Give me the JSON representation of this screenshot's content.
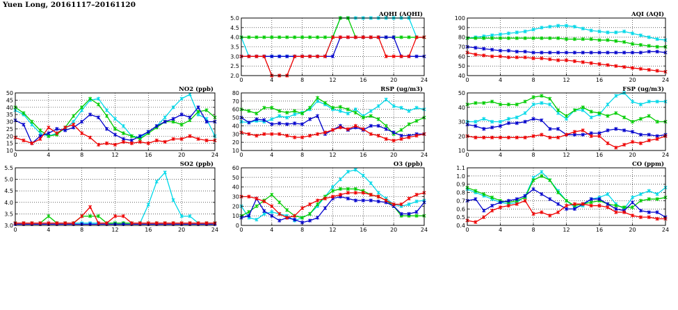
{
  "title": "Yuen Long, 20161117–20161120",
  "colors": {
    "day1": "#00d8e8",
    "day2": "#00cc00",
    "day3": "#0000cc",
    "day4": "#ee0000"
  },
  "chart_data": [
    {
      "id": "aqhi",
      "type": "line",
      "title": "AQHI (AQHI)",
      "xlim": [
        0,
        24
      ],
      "ylim": [
        2.0,
        5.0
      ],
      "xticks": [
        "0",
        "4",
        "8",
        "12",
        "16",
        "20",
        "24"
      ],
      "yticks": [
        "2.0",
        "2.5",
        "3.0",
        "3.5",
        "4.0",
        "4.5",
        "5.0"
      ],
      "grid": true,
      "series": [
        {
          "color": "cyan",
          "values": [
            4,
            3,
            3,
            3,
            3,
            3,
            3,
            3,
            3,
            3,
            3,
            3,
            4,
            5,
            5,
            5,
            5,
            5,
            5,
            5,
            5,
            5,
            5,
            4,
            4
          ]
        },
        {
          "color": "green",
          "values": [
            4,
            4,
            4,
            4,
            4,
            4,
            4,
            4,
            4,
            4,
            4,
            4,
            4,
            5,
            5,
            4,
            4,
            4,
            4,
            4,
            4,
            4,
            4,
            4,
            4
          ]
        },
        {
          "color": "blue",
          "values": [
            3,
            3,
            3,
            3,
            3,
            3,
            3,
            3,
            3,
            3,
            3,
            3,
            3,
            4,
            4,
            4,
            4,
            4,
            4,
            4,
            4,
            3,
            3,
            3,
            3
          ]
        },
        {
          "color": "red",
          "values": [
            3,
            3,
            3,
            3,
            2,
            2,
            2,
            3,
            3,
            3,
            3,
            3,
            4,
            4,
            4,
            4,
            4,
            4,
            4,
            3,
            3,
            3,
            3,
            4,
            4
          ]
        }
      ]
    },
    {
      "id": "aqi",
      "type": "line",
      "title": "AQI (AQI)",
      "xlim": [
        0,
        24
      ],
      "ylim": [
        40,
        100
      ],
      "xticks": [
        "0",
        "4",
        "8",
        "12",
        "16",
        "20",
        "24"
      ],
      "yticks": [
        "40",
        "50",
        "60",
        "70",
        "80",
        "90",
        "100"
      ],
      "grid": true,
      "series": [
        {
          "color": "cyan",
          "values": [
            79,
            80,
            81,
            82,
            83,
            84,
            85,
            86,
            88,
            90,
            91,
            92,
            92,
            91,
            89,
            87,
            86,
            85,
            85,
            86,
            84,
            82,
            80,
            78,
            77
          ]
        },
        {
          "color": "green",
          "values": [
            79,
            79,
            79,
            79,
            79,
            79,
            79,
            79,
            79,
            79,
            79,
            79,
            78,
            78,
            78,
            78,
            77,
            77,
            76,
            75,
            73,
            72,
            71,
            70,
            70
          ]
        },
        {
          "color": "blue",
          "values": [
            70,
            69,
            68,
            67,
            66,
            66,
            65,
            65,
            64,
            64,
            64,
            64,
            64,
            64,
            64,
            64,
            64,
            64,
            64,
            64,
            64,
            64,
            65,
            65,
            64
          ]
        },
        {
          "color": "red",
          "values": [
            64,
            62,
            61,
            60,
            60,
            59,
            59,
            59,
            58,
            58,
            57,
            56,
            56,
            55,
            54,
            53,
            52,
            51,
            50,
            49,
            48,
            47,
            46,
            45,
            44
          ]
        }
      ]
    },
    {
      "id": "no2",
      "type": "line",
      "title": "NO2 (ppb)",
      "xlim": [
        0,
        24
      ],
      "ylim": [
        10,
        50
      ],
      "xticks": [
        "0",
        "4",
        "8",
        "12",
        "16",
        "20",
        "24"
      ],
      "yticks": [
        "10",
        "15",
        "20",
        "25",
        "30",
        "35",
        "40",
        "45",
        "50"
      ],
      "grid": true,
      "series": [
        {
          "color": "cyan",
          "values": [
            38,
            35,
            28,
            22,
            20,
            22,
            25,
            30,
            38,
            45,
            46,
            38,
            32,
            27,
            20,
            19,
            23,
            27,
            33,
            40,
            46,
            49,
            35,
            32,
            20
          ]
        },
        {
          "color": "green",
          "values": [
            40,
            36,
            30,
            24,
            20,
            21,
            26,
            34,
            40,
            46,
            42,
            34,
            25,
            22,
            20,
            18,
            22,
            26,
            30,
            30,
            28,
            31,
            37,
            38,
            33
          ]
        },
        {
          "color": "blue",
          "values": [
            31,
            28,
            15,
            20,
            22,
            25,
            24,
            26,
            30,
            35,
            33,
            25,
            21,
            18,
            17,
            20,
            23,
            27,
            30,
            32,
            35,
            33,
            40,
            30,
            30
          ]
        },
        {
          "color": "red",
          "values": [
            19,
            17,
            15,
            18,
            26,
            22,
            26,
            28,
            22,
            19,
            14,
            15,
            14,
            16,
            15,
            16,
            15,
            17,
            16,
            18,
            18,
            20,
            18,
            17,
            17
          ]
        }
      ]
    },
    {
      "id": "rsp",
      "type": "line",
      "title": "RSP (ug/m3)",
      "xlim": [
        0,
        24
      ],
      "ylim": [
        10,
        80
      ],
      "xticks": [
        "0",
        "4",
        "8",
        "12",
        "16",
        "20",
        "24"
      ],
      "yticks": [
        "10",
        "20",
        "30",
        "40",
        "50",
        "60",
        "70",
        "80"
      ],
      "grid": true,
      "series": [
        {
          "color": "cyan",
          "values": [
            45,
            44,
            46,
            45,
            48,
            52,
            50,
            54,
            56,
            60,
            70,
            66,
            60,
            58,
            55,
            60,
            52,
            58,
            64,
            72,
            64,
            62,
            58,
            62,
            60
          ]
        },
        {
          "color": "green",
          "values": [
            60,
            58,
            55,
            62,
            62,
            58,
            56,
            58,
            55,
            62,
            74,
            68,
            62,
            63,
            60,
            56,
            50,
            52,
            48,
            40,
            30,
            35,
            42,
            46,
            50
          ]
        },
        {
          "color": "blue",
          "values": [
            50,
            44,
            48,
            47,
            42,
            43,
            42,
            43,
            42,
            48,
            52,
            30,
            35,
            40,
            35,
            38,
            35,
            40,
            40,
            36,
            32,
            28,
            28,
            30,
            30
          ]
        },
        {
          "color": "red",
          "values": [
            32,
            30,
            28,
            30,
            30,
            30,
            28,
            26,
            26,
            28,
            30,
            32,
            35,
            38,
            36,
            40,
            36,
            30,
            28,
            24,
            22,
            24,
            26,
            28,
            30
          ]
        }
      ]
    },
    {
      "id": "fsp",
      "type": "line",
      "title": "FSP (ug/m3)",
      "xlim": [
        0,
        24
      ],
      "ylim": [
        10,
        50
      ],
      "xticks": [
        "0",
        "4",
        "8",
        "12",
        "16",
        "20",
        "24"
      ],
      "yticks": [
        "10",
        "20",
        "30",
        "40",
        "50"
      ],
      "grid": true,
      "series": [
        {
          "color": "cyan",
          "values": [
            30,
            30,
            32,
            30,
            30,
            32,
            33,
            36,
            42,
            43,
            42,
            36,
            32,
            38,
            38,
            33,
            35,
            42,
            48,
            50,
            44,
            42,
            44,
            44,
            44
          ]
        },
        {
          "color": "green",
          "values": [
            42,
            43,
            43,
            44,
            42,
            42,
            42,
            44,
            47,
            48,
            46,
            38,
            34,
            38,
            40,
            37,
            36,
            34,
            36,
            33,
            30,
            32,
            34,
            30,
            30
          ]
        },
        {
          "color": "blue",
          "values": [
            28,
            27,
            25,
            26,
            27,
            29,
            29,
            30,
            32,
            31,
            25,
            25,
            21,
            21,
            21,
            22,
            22,
            24,
            25,
            24,
            23,
            21,
            21,
            20,
            21
          ]
        },
        {
          "color": "red",
          "values": [
            20,
            19,
            19,
            19,
            19,
            19,
            19,
            19,
            20,
            21,
            19,
            19,
            21,
            23,
            24,
            20,
            20,
            15,
            12,
            14,
            16,
            15,
            17,
            18,
            20
          ]
        }
      ]
    },
    {
      "id": "so2",
      "type": "line",
      "title": "SO2 (ppb)",
      "xlim": [
        0,
        24
      ],
      "ylim": [
        3.0,
        5.5
      ],
      "xticks": [
        "0",
        "4",
        "8",
        "12",
        "16",
        "20",
        "24"
      ],
      "yticks": [
        "3.0",
        "3.5",
        "4.0",
        "4.5",
        "5.0",
        "5.5"
      ],
      "grid": true,
      "series": [
        {
          "color": "cyan",
          "values": [
            3.1,
            3.1,
            3.1,
            3.1,
            3.1,
            3.1,
            3.1,
            3.1,
            3.1,
            3.1,
            3.1,
            3.1,
            3.1,
            3.1,
            3.1,
            3.1,
            3.9,
            4.9,
            5.3,
            4.1,
            3.4,
            3.4,
            3.1,
            3.1,
            3.1
          ]
        },
        {
          "color": "green",
          "values": [
            3.1,
            3.1,
            3.1,
            3.1,
            3.4,
            3.1,
            3.1,
            3.1,
            3.4,
            3.4,
            3.4,
            3.1,
            3.1,
            3.1,
            3.1,
            3.1,
            3.1,
            3.1,
            3.1,
            3.1,
            3.1,
            3.1,
            3.1,
            3.1,
            3.1
          ]
        },
        {
          "color": "blue",
          "values": [
            3.05,
            3.05,
            3.05,
            3.05,
            3.05,
            3.05,
            3.05,
            3.05,
            3.05,
            3.05,
            3.05,
            3.05,
            3.05,
            3.05,
            3.05,
            3.05,
            3.05,
            3.05,
            3.05,
            3.05,
            3.05,
            3.05,
            3.05,
            3.05,
            3.05
          ]
        },
        {
          "color": "red",
          "values": [
            3.1,
            3.1,
            3.1,
            3.1,
            3.1,
            3.1,
            3.1,
            3.1,
            3.4,
            3.8,
            3.1,
            3.1,
            3.4,
            3.4,
            3.1,
            3.1,
            3.1,
            3.1,
            3.1,
            3.1,
            3.1,
            3.1,
            3.1,
            3.1,
            3.1
          ]
        }
      ]
    },
    {
      "id": "o3",
      "type": "line",
      "title": "O3 (ppb)",
      "xlim": [
        0,
        24
      ],
      "ylim": [
        0,
        60
      ],
      "xticks": [
        "0",
        "4",
        "8",
        "12",
        "16",
        "20",
        "24"
      ],
      "yticks": [
        "0",
        "10",
        "20",
        "30",
        "40",
        "50",
        "60"
      ],
      "grid": true,
      "series": [
        {
          "color": "cyan",
          "values": [
            20,
            8,
            6,
            12,
            14,
            12,
            10,
            5,
            8,
            12,
            20,
            30,
            40,
            48,
            56,
            58,
            52,
            44,
            34,
            28,
            22,
            20,
            22,
            25,
            26
          ]
        },
        {
          "color": "green",
          "values": [
            10,
            14,
            20,
            26,
            32,
            24,
            16,
            10,
            8,
            12,
            22,
            30,
            36,
            38,
            38,
            38,
            36,
            32,
            30,
            26,
            20,
            10,
            10,
            10,
            10
          ]
        },
        {
          "color": "blue",
          "values": [
            8,
            10,
            28,
            15,
            10,
            5,
            8,
            6,
            3,
            5,
            8,
            18,
            28,
            30,
            28,
            26,
            26,
            26,
            25,
            24,
            20,
            12,
            12,
            14,
            24
          ]
        },
        {
          "color": "red",
          "values": [
            30,
            30,
            28,
            25,
            20,
            12,
            8,
            10,
            18,
            22,
            26,
            28,
            30,
            32,
            34,
            34,
            34,
            32,
            30,
            26,
            22,
            22,
            28,
            32,
            34
          ]
        }
      ]
    },
    {
      "id": "co",
      "type": "line",
      "title": "CO (ppm)",
      "xlim": [
        0,
        24
      ],
      "ylim": [
        0.4,
        1.1
      ],
      "xticks": [
        "0",
        "4",
        "8",
        "12",
        "16",
        "20",
        "24"
      ],
      "yticks": [
        "0.4",
        "0.5",
        "0.6",
        "0.7",
        "0.8",
        "0.9",
        "1.0",
        "1.1"
      ],
      "grid": true,
      "series": [
        {
          "color": "cyan",
          "values": [
            0.84,
            0.8,
            0.76,
            0.72,
            0.68,
            0.66,
            0.68,
            0.75,
            0.98,
            1.05,
            0.95,
            0.82,
            0.7,
            0.62,
            0.64,
            0.72,
            0.74,
            0.78,
            0.66,
            0.6,
            0.74,
            0.78,
            0.82,
            0.78,
            0.86
          ]
        },
        {
          "color": "green",
          "values": [
            0.86,
            0.82,
            0.78,
            0.74,
            0.7,
            0.68,
            0.7,
            0.74,
            0.95,
            1.0,
            0.95,
            0.8,
            0.7,
            0.64,
            0.66,
            0.68,
            0.7,
            0.66,
            0.64,
            0.62,
            0.62,
            0.7,
            0.72,
            0.72,
            0.74
          ]
        },
        {
          "color": "blue",
          "values": [
            0.7,
            0.72,
            0.58,
            0.64,
            0.68,
            0.7,
            0.72,
            0.76,
            0.84,
            0.78,
            0.72,
            0.66,
            0.6,
            0.6,
            0.66,
            0.72,
            0.72,
            0.66,
            0.6,
            0.58,
            0.68,
            0.58,
            0.56,
            0.56,
            0.5
          ]
        },
        {
          "color": "red",
          "values": [
            0.46,
            0.44,
            0.5,
            0.58,
            0.62,
            0.64,
            0.66,
            0.7,
            0.54,
            0.56,
            0.52,
            0.56,
            0.64,
            0.66,
            0.66,
            0.64,
            0.64,
            0.62,
            0.56,
            0.56,
            0.52,
            0.5,
            0.5,
            0.48,
            0.48
          ]
        }
      ]
    }
  ]
}
